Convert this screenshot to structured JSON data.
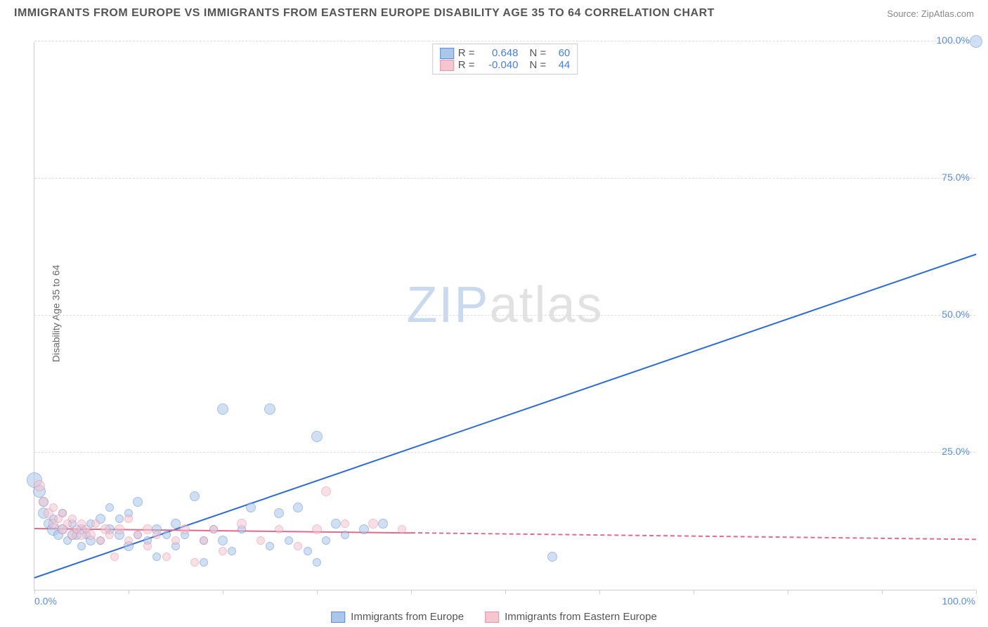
{
  "title": "IMMIGRANTS FROM EUROPE VS IMMIGRANTS FROM EASTERN EUROPE DISABILITY AGE 35 TO 64 CORRELATION CHART",
  "source_label": "Source:",
  "source_value": "ZipAtlas.com",
  "ylabel": "Disability Age 35 to 64",
  "watermark_a": "ZIP",
  "watermark_b": "atlas",
  "chart": {
    "type": "scatter",
    "background_color": "#ffffff",
    "grid_color": "#dddddd",
    "xlim": [
      0,
      100
    ],
    "ylim": [
      0,
      100
    ],
    "x_ticks": [
      0,
      10,
      20,
      30,
      40,
      50,
      60,
      70,
      80,
      90,
      100
    ],
    "y_ticks": [
      25,
      50,
      75,
      100
    ],
    "y_tick_labels": [
      "25.0%",
      "50.0%",
      "75.0%",
      "100.0%"
    ],
    "x_tick_label_0": "0.0%",
    "x_tick_label_100": "100.0%",
    "marker_border_width": 1,
    "marker_opacity": 0.55
  },
  "series": [
    {
      "name": "Immigrants from Europe",
      "fill": "#aac6e9",
      "stroke": "#5b8dd6",
      "trend_color": "#2e6bd1",
      "trend_width": 2,
      "trend_dash": "solid",
      "R": "0.648",
      "N": "60",
      "trend_intercept": 2,
      "trend_slope": 0.59,
      "points": [
        {
          "x": 0,
          "y": 20,
          "r": 11
        },
        {
          "x": 0.5,
          "y": 18,
          "r": 9
        },
        {
          "x": 1,
          "y": 14,
          "r": 8
        },
        {
          "x": 1,
          "y": 16,
          "r": 7
        },
        {
          "x": 1.5,
          "y": 12,
          "r": 7
        },
        {
          "x": 2,
          "y": 11,
          "r": 9
        },
        {
          "x": 2,
          "y": 13,
          "r": 6
        },
        {
          "x": 2.5,
          "y": 10,
          "r": 7
        },
        {
          "x": 3,
          "y": 11,
          "r": 7
        },
        {
          "x": 3,
          "y": 14,
          "r": 6
        },
        {
          "x": 3.5,
          "y": 9,
          "r": 6
        },
        {
          "x": 4,
          "y": 10,
          "r": 7
        },
        {
          "x": 4,
          "y": 12,
          "r": 6
        },
        {
          "x": 4.5,
          "y": 10,
          "r": 7
        },
        {
          "x": 5,
          "y": 8,
          "r": 6
        },
        {
          "x": 5,
          "y": 11,
          "r": 7
        },
        {
          "x": 5.5,
          "y": 10,
          "r": 6
        },
        {
          "x": 6,
          "y": 9,
          "r": 7
        },
        {
          "x": 6,
          "y": 12,
          "r": 6
        },
        {
          "x": 7,
          "y": 13,
          "r": 7
        },
        {
          "x": 7,
          "y": 9,
          "r": 6
        },
        {
          "x": 8,
          "y": 11,
          "r": 7
        },
        {
          "x": 8,
          "y": 15,
          "r": 6
        },
        {
          "x": 9,
          "y": 10,
          "r": 7
        },
        {
          "x": 9,
          "y": 13,
          "r": 6
        },
        {
          "x": 10,
          "y": 8,
          "r": 7
        },
        {
          "x": 10,
          "y": 14,
          "r": 6
        },
        {
          "x": 11,
          "y": 10,
          "r": 6
        },
        {
          "x": 11,
          "y": 16,
          "r": 7
        },
        {
          "x": 12,
          "y": 9,
          "r": 6
        },
        {
          "x": 13,
          "y": 11,
          "r": 7
        },
        {
          "x": 13,
          "y": 6,
          "r": 6
        },
        {
          "x": 14,
          "y": 10,
          "r": 6
        },
        {
          "x": 15,
          "y": 12,
          "r": 7
        },
        {
          "x": 15,
          "y": 8,
          "r": 6
        },
        {
          "x": 16,
          "y": 10,
          "r": 6
        },
        {
          "x": 17,
          "y": 17,
          "r": 7
        },
        {
          "x": 18,
          "y": 9,
          "r": 6
        },
        {
          "x": 18,
          "y": 5,
          "r": 6
        },
        {
          "x": 19,
          "y": 11,
          "r": 6
        },
        {
          "x": 20,
          "y": 9,
          "r": 7
        },
        {
          "x": 20,
          "y": 33,
          "r": 8
        },
        {
          "x": 21,
          "y": 7,
          "r": 6
        },
        {
          "x": 22,
          "y": 11,
          "r": 6
        },
        {
          "x": 23,
          "y": 15,
          "r": 7
        },
        {
          "x": 25,
          "y": 33,
          "r": 8
        },
        {
          "x": 25,
          "y": 8,
          "r": 6
        },
        {
          "x": 26,
          "y": 14,
          "r": 7
        },
        {
          "x": 27,
          "y": 9,
          "r": 6
        },
        {
          "x": 28,
          "y": 15,
          "r": 7
        },
        {
          "x": 29,
          "y": 7,
          "r": 6
        },
        {
          "x": 30,
          "y": 28,
          "r": 8
        },
        {
          "x": 30,
          "y": 5,
          "r": 6
        },
        {
          "x": 31,
          "y": 9,
          "r": 6
        },
        {
          "x": 32,
          "y": 12,
          "r": 7
        },
        {
          "x": 33,
          "y": 10,
          "r": 6
        },
        {
          "x": 35,
          "y": 11,
          "r": 7
        },
        {
          "x": 37,
          "y": 12,
          "r": 7
        },
        {
          "x": 55,
          "y": 6,
          "r": 7
        },
        {
          "x": 100,
          "y": 100,
          "r": 9
        }
      ]
    },
    {
      "name": "Immigrants from Eastern Europe",
      "fill": "#f4c6d0",
      "stroke": "#e393ab",
      "trend_color": "#e26a8a",
      "trend_width": 2,
      "trend_dash": "dashed",
      "trend_solid_until": 40,
      "R": "-0.040",
      "N": "44",
      "trend_intercept": 11,
      "trend_slope": -0.02,
      "points": [
        {
          "x": 0.5,
          "y": 19,
          "r": 8
        },
        {
          "x": 1,
          "y": 16,
          "r": 7
        },
        {
          "x": 1.5,
          "y": 14,
          "r": 7
        },
        {
          "x": 2,
          "y": 15,
          "r": 6
        },
        {
          "x": 2,
          "y": 12,
          "r": 7
        },
        {
          "x": 2.5,
          "y": 13,
          "r": 6
        },
        {
          "x": 3,
          "y": 11,
          "r": 7
        },
        {
          "x": 3,
          "y": 14,
          "r": 6
        },
        {
          "x": 3.5,
          "y": 12,
          "r": 6
        },
        {
          "x": 4,
          "y": 10,
          "r": 7
        },
        {
          "x": 4,
          "y": 13,
          "r": 6
        },
        {
          "x": 4.5,
          "y": 11,
          "r": 6
        },
        {
          "x": 5,
          "y": 10,
          "r": 7
        },
        {
          "x": 5,
          "y": 12,
          "r": 6
        },
        {
          "x": 5.5,
          "y": 11,
          "r": 6
        },
        {
          "x": 6,
          "y": 10,
          "r": 7
        },
        {
          "x": 6.5,
          "y": 12,
          "r": 6
        },
        {
          "x": 7,
          "y": 9,
          "r": 6
        },
        {
          "x": 7.5,
          "y": 11,
          "r": 7
        },
        {
          "x": 8,
          "y": 10,
          "r": 6
        },
        {
          "x": 8.5,
          "y": 6,
          "r": 6
        },
        {
          "x": 9,
          "y": 11,
          "r": 7
        },
        {
          "x": 10,
          "y": 9,
          "r": 6
        },
        {
          "x": 10,
          "y": 13,
          "r": 6
        },
        {
          "x": 11,
          "y": 10,
          "r": 6
        },
        {
          "x": 12,
          "y": 8,
          "r": 6
        },
        {
          "x": 12,
          "y": 11,
          "r": 7
        },
        {
          "x": 13,
          "y": 10,
          "r": 6
        },
        {
          "x": 14,
          "y": 6,
          "r": 6
        },
        {
          "x": 15,
          "y": 9,
          "r": 6
        },
        {
          "x": 16,
          "y": 11,
          "r": 7
        },
        {
          "x": 17,
          "y": 5,
          "r": 6
        },
        {
          "x": 18,
          "y": 9,
          "r": 6
        },
        {
          "x": 19,
          "y": 11,
          "r": 6
        },
        {
          "x": 20,
          "y": 7,
          "r": 6
        },
        {
          "x": 22,
          "y": 12,
          "r": 7
        },
        {
          "x": 24,
          "y": 9,
          "r": 6
        },
        {
          "x": 26,
          "y": 11,
          "r": 6
        },
        {
          "x": 28,
          "y": 8,
          "r": 6
        },
        {
          "x": 30,
          "y": 11,
          "r": 7
        },
        {
          "x": 31,
          "y": 18,
          "r": 7
        },
        {
          "x": 33,
          "y": 12,
          "r": 6
        },
        {
          "x": 36,
          "y": 12,
          "r": 7
        },
        {
          "x": 39,
          "y": 11,
          "r": 6
        }
      ]
    }
  ],
  "legend_top": {
    "r_label": "R =",
    "n_label": "N ="
  }
}
